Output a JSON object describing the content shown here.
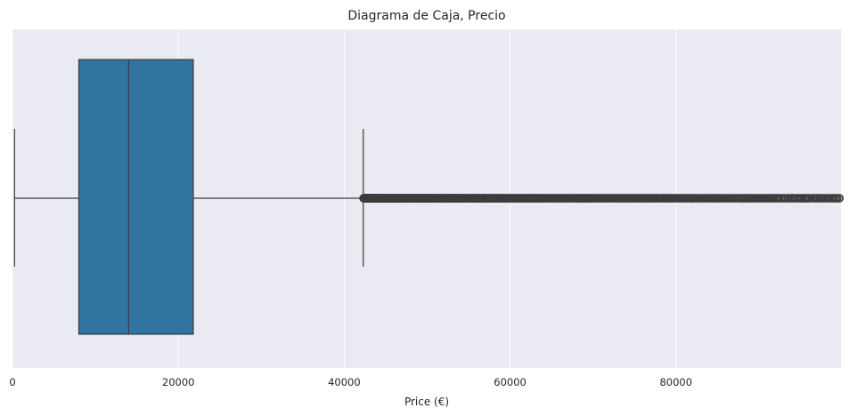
{
  "chart_data": {
    "type": "boxplot",
    "title": "Diagrama de Caja, Precio",
    "xlabel": "Price (€)",
    "ylabel": "",
    "xlim": [
      0,
      99900
    ],
    "xticks": [
      0,
      20000,
      40000,
      60000,
      80000
    ],
    "tick_labels": [
      "0",
      "20000",
      "40000",
      "60000",
      "80000"
    ],
    "grid": true,
    "box": {
      "whisker_low": 250,
      "q1": 8000,
      "median": 14000,
      "q3": 21800,
      "whisker_high": 42300
    },
    "outliers_range": [
      42300,
      99900
    ],
    "colors": {
      "box_fill": "#3274a1",
      "background": "#eaeaf2",
      "grid": "#ffffff",
      "line": "#3d3d3d"
    }
  }
}
